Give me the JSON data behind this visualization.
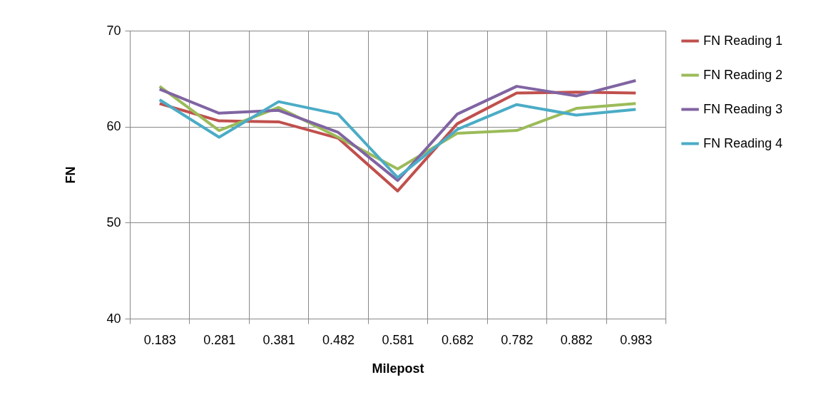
{
  "chart_data": {
    "type": "line",
    "xlabel": "Milepost",
    "ylabel": "FN",
    "categories": [
      "0.183",
      "0.281",
      "0.381",
      "0.482",
      "0.581",
      "0.682",
      "0.782",
      "0.882",
      "0.983"
    ],
    "ylim": [
      40,
      70
    ],
    "yticks": [
      40,
      50,
      60,
      70
    ],
    "grid": true,
    "legend": "right",
    "series": [
      {
        "name": "FN Reading 1",
        "color": "#c0504d",
        "values": [
          62.4,
          60.6,
          60.5,
          58.8,
          53.3,
          60.3,
          63.5,
          63.6,
          63.5
        ]
      },
      {
        "name": "FN Reading 2",
        "color": "#9bbb59",
        "values": [
          64.2,
          59.6,
          62.0,
          58.9,
          55.6,
          59.3,
          59.6,
          61.9,
          62.4
        ]
      },
      {
        "name": "FN Reading 3",
        "color": "#8064a2",
        "values": [
          63.9,
          61.4,
          61.7,
          59.4,
          54.4,
          61.3,
          64.2,
          63.2,
          64.8
        ]
      },
      {
        "name": "FN Reading 4",
        "color": "#4bacc6",
        "values": [
          62.8,
          58.9,
          62.6,
          61.3,
          54.7,
          59.7,
          62.3,
          61.2,
          61.8
        ]
      }
    ]
  }
}
